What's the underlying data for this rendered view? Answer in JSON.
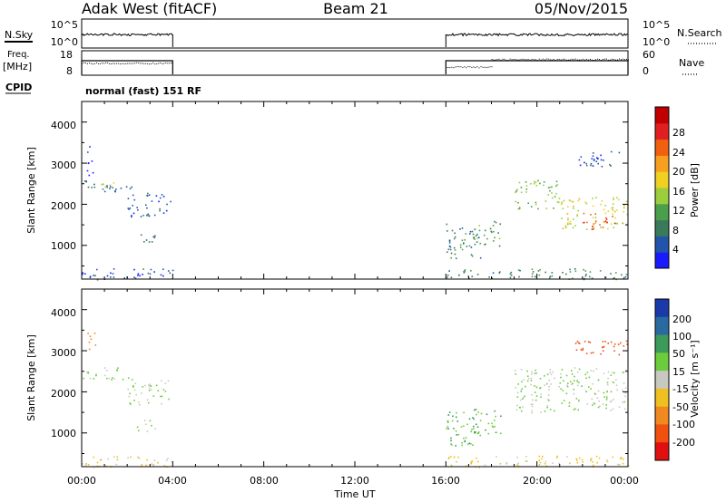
{
  "header": {
    "station": "Adak West (fitACF)",
    "beam": "Beam 21",
    "date": "05/Nov/2015"
  },
  "side_labels": {
    "nsky": "N.Sky",
    "freq_top": "Freq.",
    "freq_unit": "[MHz]",
    "cpid": "CPID",
    "nsearch": "N.Search",
    "nave": "Nave"
  },
  "aux_ticks": {
    "nsky_left": [
      "10^5",
      "10^0"
    ],
    "nsearch_right": [
      "10^5",
      "10^0"
    ],
    "freq_left": [
      "18",
      "8"
    ],
    "nave_right": [
      "60",
      "0"
    ]
  },
  "cpid_text": "normal (fast) 151 RF",
  "axes": {
    "y_label": "Slant Range [km]",
    "y_ticks": [
      "1000",
      "2000",
      "3000",
      "4000"
    ],
    "x_label": "Time UT",
    "x_ticks": [
      "00:00",
      "04:00",
      "08:00",
      "12:00",
      "16:00",
      "20:00",
      "00:00"
    ]
  },
  "colorbars": {
    "power": {
      "label": "Power [dB]",
      "ticks": [
        "4",
        "8",
        "12",
        "16",
        "20",
        "24",
        "28"
      ],
      "colors": [
        "#1a1aff",
        "#2255aa",
        "#3a7a5a",
        "#4aa04a",
        "#9ccd3c",
        "#f0d020",
        "#f7a020",
        "#f06010",
        "#e02020",
        "#c00000"
      ]
    },
    "velocity": {
      "label": "Velocity [m s⁻¹]",
      "ticks": [
        "200",
        "100",
        "50",
        "15",
        "-15",
        "-50",
        "-100",
        "-200"
      ],
      "colors": [
        "#1a3aaa",
        "#2a6aa0",
        "#3c9a5a",
        "#6ccc3c",
        "#c8c8c0",
        "#f0c020",
        "#f08a20",
        "#f05010",
        "#e01010"
      ]
    }
  },
  "chart_data": {
    "type": "heatmap",
    "title": "Adak West (fitACF)  Beam 21  05/Nov/2015",
    "xlabel": "Time UT",
    "ylabel": "Slant Range [km]",
    "xlim_hours": [
      0,
      24
    ],
    "ylim_km": [
      180,
      4500
    ],
    "data_coverage_hours": [
      [
        0,
        4
      ],
      [
        16,
        24
      ]
    ],
    "frequency_mhz": [
      [
        0,
        4,
        12
      ],
      [
        16,
        24,
        12
      ]
    ],
    "nave": [
      [
        0,
        4,
        30
      ],
      [
        16,
        18,
        20
      ],
      [
        18,
        24,
        40
      ]
    ],
    "power_patches": [
      {
        "t0": 0.0,
        "t1": 2.2,
        "r0": 2300,
        "r1": 2600,
        "level": 8
      },
      {
        "t0": 0.7,
        "t1": 1.4,
        "r0": 2350,
        "r1": 2550,
        "level": 16
      },
      {
        "t0": 2.0,
        "t1": 3.9,
        "r0": 1700,
        "r1": 2300,
        "level": 6
      },
      {
        "t0": 2.4,
        "t1": 3.2,
        "r0": 1050,
        "r1": 1350,
        "level": 10
      },
      {
        "t0": 0.2,
        "t1": 0.5,
        "r0": 2700,
        "r1": 3500,
        "level": 4
      },
      {
        "t0": 0.0,
        "t1": 4.0,
        "r0": 180,
        "r1": 450,
        "level": 6
      },
      {
        "t0": 16.0,
        "t1": 17.5,
        "r0": 700,
        "r1": 1550,
        "level": 10
      },
      {
        "t0": 17.0,
        "t1": 18.4,
        "r0": 1000,
        "r1": 1600,
        "level": 12
      },
      {
        "t0": 16.0,
        "t1": 24.0,
        "r0": 180,
        "r1": 450,
        "level": 10
      },
      {
        "t0": 19.0,
        "t1": 21.0,
        "r0": 1900,
        "r1": 2600,
        "level": 14
      },
      {
        "t0": 21.0,
        "t1": 24.0,
        "r0": 1400,
        "r1": 2200,
        "level": 18
      },
      {
        "t0": 22.0,
        "t1": 23.5,
        "r0": 1400,
        "r1": 1800,
        "level": 26
      },
      {
        "t0": 21.6,
        "t1": 23.6,
        "r0": 2900,
        "r1": 3300,
        "level": 6
      }
    ],
    "velocity_patches": [
      {
        "t0": 0.0,
        "t1": 2.2,
        "r0": 2300,
        "r1": 2600,
        "v": 0
      },
      {
        "t0": 2.0,
        "t1": 3.9,
        "r0": 1700,
        "r1": 2300,
        "v": 0
      },
      {
        "t0": 2.4,
        "t1": 3.2,
        "r0": 1050,
        "r1": 1350,
        "v": 0
      },
      {
        "t0": 0.2,
        "t1": 0.6,
        "r0": 3000,
        "r1": 3500,
        "v": -120
      },
      {
        "t0": 0.0,
        "t1": 4.0,
        "r0": 180,
        "r1": 450,
        "v": -40
      },
      {
        "t0": 16.0,
        "t1": 17.5,
        "r0": 700,
        "r1": 1550,
        "v": 30
      },
      {
        "t0": 17.0,
        "t1": 18.4,
        "r0": 1000,
        "r1": 1600,
        "v": 30
      },
      {
        "t0": 16.0,
        "t1": 24.0,
        "r0": 180,
        "r1": 450,
        "v": -40
      },
      {
        "t0": 19.0,
        "t1": 24.0,
        "r0": 1500,
        "r1": 2600,
        "v": 0
      },
      {
        "t0": 21.6,
        "t1": 24.0,
        "r0": 2900,
        "r1": 3300,
        "v": -180
      }
    ]
  }
}
